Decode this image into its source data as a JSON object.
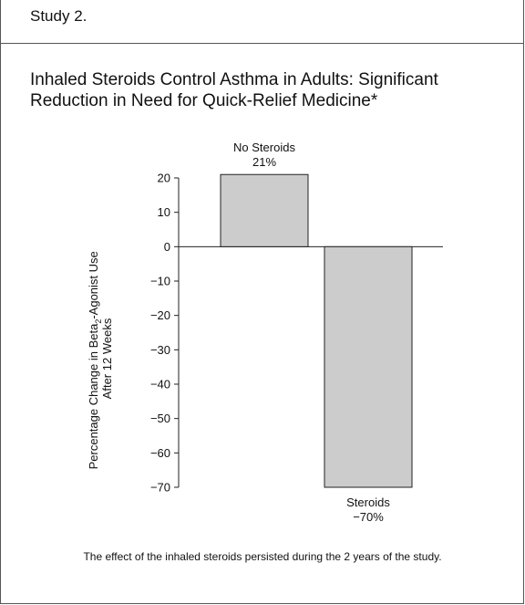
{
  "study_label": "Study 2.",
  "title_line1": "Inhaled Steroids Control Asthma in Adults:  Significant",
  "title_line2": "Reduction in Need for Quick-Relief Medicine*",
  "footnote": "The effect of the inhaled steroids persisted during the 2 years of the study.",
  "chart_data": {
    "type": "bar",
    "categories": [
      "No Steroids",
      "Steroids"
    ],
    "values": [
      21,
      -70
    ],
    "value_labels": [
      "21%",
      "−70%"
    ],
    "ylabel_line1_pre": "Percentage Change in Beta",
    "ylabel_line1_sub": "2",
    "ylabel_line1_post": "-Agonist Use",
    "ylabel_line2": "After 12 Weeks",
    "ylim": [
      -70,
      20
    ],
    "yticks": [
      20,
      10,
      0,
      -10,
      -20,
      -30,
      -40,
      -50,
      -60,
      -70
    ],
    "ytick_labels": [
      "20",
      "10",
      "0",
      "−10",
      "−20",
      "−30",
      "−40",
      "−50",
      "−60",
      "−70"
    ],
    "bar_color": "#cccccc"
  }
}
